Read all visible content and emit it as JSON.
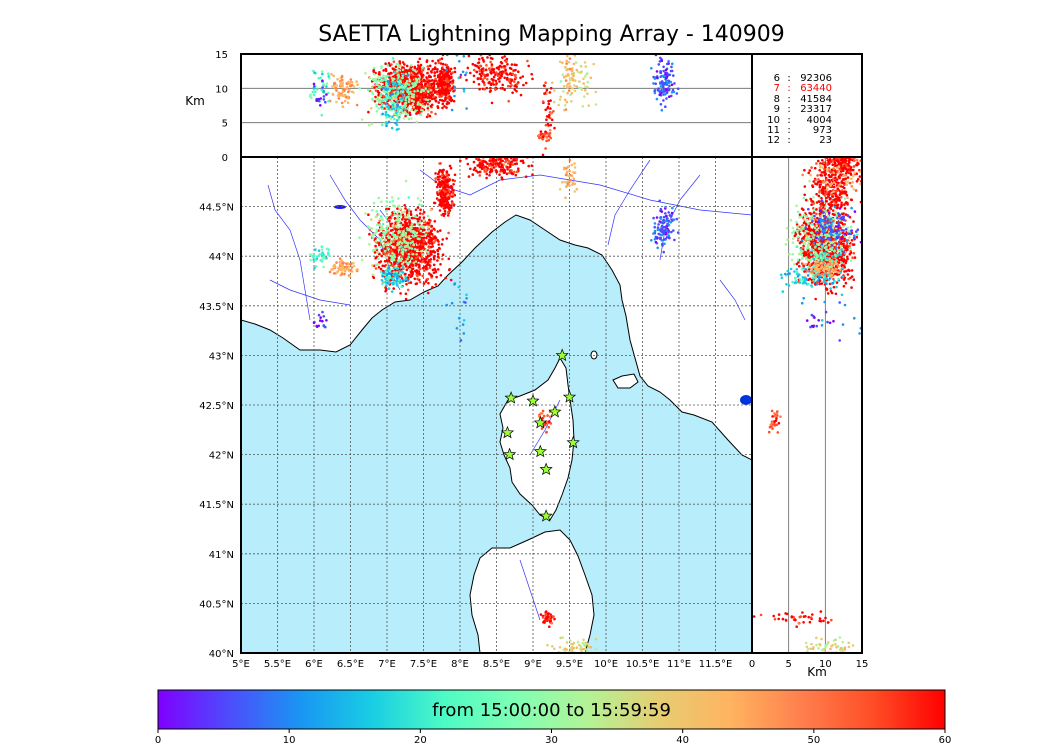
{
  "title": "SAETTA Lightning Mapping Array - 140909",
  "colorbar_label": "from 15:00:00 to 15:59:59",
  "colormap": [
    "#7f00ff",
    "#4d4dfc",
    "#1996f3",
    "#19cee3",
    "#4dfbc5",
    "#80ffb4",
    "#b3f396",
    "#e6cd73",
    "#ffb360",
    "#ff7f4d",
    "#ff4d26",
    "#ff0000"
  ],
  "colors": {
    "sea": "#b8edfb",
    "land": "#ffffff",
    "rivers": "#3333ff",
    "grid": "#555555",
    "station_fill": "#99ff33",
    "highlight": "#ff0000"
  },
  "station_count_title": "",
  "station_counts": [
    {
      "level": "6",
      "count": "92306",
      "highlight": false
    },
    {
      "level": "7",
      "count": "63440",
      "highlight": true
    },
    {
      "level": "8",
      "count": "41584",
      "highlight": false
    },
    {
      "level": "9",
      "count": "23317",
      "highlight": false
    },
    {
      "level": "10",
      "count": "4004",
      "highlight": false
    },
    {
      "level": "11",
      "count": "973",
      "highlight": false
    },
    {
      "level": "12",
      "count": "23",
      "highlight": false
    }
  ],
  "chart_data": {
    "type": "scatter",
    "title": "SAETTA Lightning Mapping Array - 140909",
    "map": {
      "xlim": [
        5,
        12
      ],
      "ylim": [
        40,
        45
      ],
      "x_ticks": [
        "5°E",
        "5.5°E",
        "6°E",
        "6.5°E",
        "7°E",
        "7.5°E",
        "8°E",
        "8.5°E",
        "9°E",
        "9.5°E",
        "10°E",
        "10.5°E",
        "11°E",
        "11.5°E"
      ],
      "y_ticks": [
        "40°N",
        "40.5°N",
        "41°N",
        "41.5°N",
        "42°N",
        "42.5°N",
        "43°N",
        "43.5°N",
        "44°N",
        "44.5°N"
      ],
      "grid": true
    },
    "altitude_axis": {
      "label": "Km",
      "lim": [
        0,
        15
      ],
      "ticks": [
        "0",
        "5",
        "10",
        "15"
      ]
    },
    "color_axis": {
      "lim": [
        0,
        60
      ],
      "ticks": [
        "0",
        "10",
        "20",
        "30",
        "40",
        "50",
        "60"
      ],
      "label": "from 15:00:00 to 15:59:59"
    },
    "stations": [
      {
        "lon": 9.4,
        "lat": 43.0
      },
      {
        "lon": 8.7,
        "lat": 42.57
      },
      {
        "lon": 9.0,
        "lat": 42.54
      },
      {
        "lon": 9.5,
        "lat": 42.58
      },
      {
        "lon": 9.3,
        "lat": 42.43
      },
      {
        "lon": 9.1,
        "lat": 42.32
      },
      {
        "lon": 8.65,
        "lat": 42.22
      },
      {
        "lon": 9.55,
        "lat": 42.12
      },
      {
        "lon": 9.1,
        "lat": 42.03
      },
      {
        "lon": 8.68,
        "lat": 42.0
      },
      {
        "lon": 9.18,
        "lat": 41.85
      },
      {
        "lon": 9.18,
        "lat": 41.38
      }
    ],
    "clusters": [
      {
        "lon": 7.3,
        "lat": 44.08,
        "alt": 10,
        "time": 58,
        "n": 900,
        "slon": 0.22,
        "slat": 0.18,
        "salt": 1.6
      },
      {
        "lon": 7.15,
        "lat": 44.22,
        "alt": 9,
        "time": 30,
        "n": 250,
        "slon": 0.2,
        "slat": 0.2,
        "salt": 2.0
      },
      {
        "lon": 7.8,
        "lat": 44.65,
        "alt": 11,
        "time": 58,
        "n": 220,
        "slon": 0.06,
        "slat": 0.12,
        "salt": 1.5
      },
      {
        "lon": 7.1,
        "lat": 43.8,
        "alt": 8,
        "time": 18,
        "n": 90,
        "slon": 0.08,
        "slat": 0.06,
        "salt": 2.0
      },
      {
        "lon": 8.5,
        "lat": 44.93,
        "alt": 12,
        "time": 57,
        "n": 200,
        "slon": 0.2,
        "slat": 0.06,
        "salt": 1.5
      },
      {
        "lon": 6.4,
        "lat": 43.88,
        "alt": 10,
        "time": 44,
        "n": 80,
        "slon": 0.08,
        "slat": 0.04,
        "salt": 1.2
      },
      {
        "lon": 10.8,
        "lat": 44.3,
        "alt": 11,
        "time": 8,
        "n": 110,
        "slon": 0.08,
        "slat": 0.1,
        "salt": 1.8
      },
      {
        "lon": 6.1,
        "lat": 44.0,
        "alt": 10,
        "time": 22,
        "n": 40,
        "slon": 0.08,
        "slat": 0.05,
        "salt": 1.5
      },
      {
        "lon": 9.15,
        "lat": 42.35,
        "alt": 3,
        "time": 52,
        "n": 30,
        "slon": 0.04,
        "slat": 0.05,
        "salt": 0.4
      },
      {
        "lon": 9.2,
        "lat": 40.35,
        "alt": 6,
        "time": 56,
        "n": 40,
        "slon": 0.04,
        "slat": 0.03,
        "salt": 2.5
      },
      {
        "lon": 9.6,
        "lat": 40.05,
        "alt": 11,
        "time": 36,
        "n": 60,
        "slon": 0.15,
        "slat": 0.05,
        "salt": 2.0
      },
      {
        "lon": 9.5,
        "lat": 44.8,
        "alt": 12,
        "time": 42,
        "n": 40,
        "slon": 0.05,
        "slat": 0.1,
        "salt": 2.0
      },
      {
        "lon": 6.1,
        "lat": 43.35,
        "alt": 9,
        "time": 6,
        "n": 15,
        "slon": 0.05,
        "slat": 0.04,
        "salt": 1.0
      },
      {
        "lon": 8.0,
        "lat": 43.5,
        "alt": 11,
        "time": 12,
        "n": 15,
        "slon": 0.08,
        "slat": 0.2,
        "salt": 3.0
      }
    ]
  }
}
